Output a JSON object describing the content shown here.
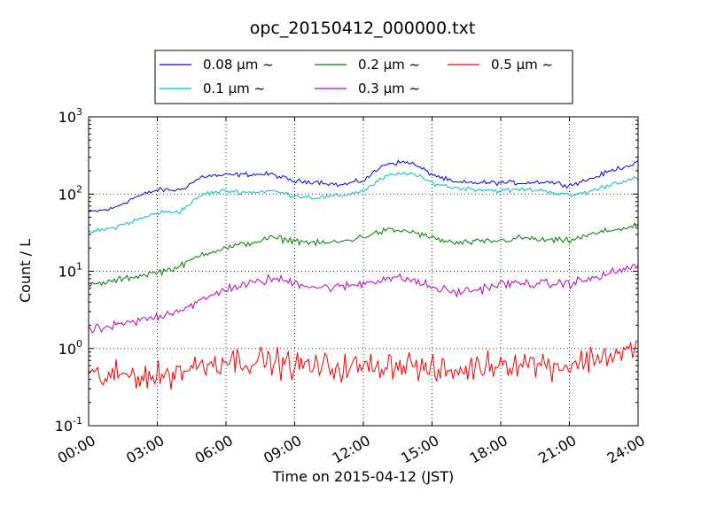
{
  "chart_data": {
    "type": "line",
    "title": "opc_20150412_000000.txt",
    "xlabel": "Time on 2015-04-12 (JST)",
    "ylabel": "Count / L",
    "yscale": "log",
    "ylim": [
      0.1,
      1000
    ],
    "xlim": [
      "00:00",
      "24:00"
    ],
    "grid": true,
    "legend_position": "top",
    "x_tick_labels": [
      "00:00",
      "03:00",
      "06:00",
      "09:00",
      "12:00",
      "15:00",
      "18:00",
      "21:00",
      "24:00"
    ],
    "y_tick_labels": [
      {
        "base": "10",
        "exp": "-1"
      },
      {
        "base": "10",
        "exp": "0"
      },
      {
        "base": "10",
        "exp": "1"
      },
      {
        "base": "10",
        "exp": "2"
      },
      {
        "base": "10",
        "exp": "3"
      }
    ],
    "x": [
      "00:00",
      "01:00",
      "02:00",
      "03:00",
      "04:00",
      "05:00",
      "06:00",
      "07:00",
      "08:00",
      "09:00",
      "10:00",
      "11:00",
      "12:00",
      "13:00",
      "14:00",
      "15:00",
      "16:00",
      "17:00",
      "18:00",
      "19:00",
      "20:00",
      "21:00",
      "22:00",
      "23:00",
      "24:00"
    ],
    "series": [
      {
        "name": "0.08 μm ~",
        "color": "#0000ff",
        "noise": 0.015,
        "values": [
          58,
          64,
          90,
          113,
          113,
          170,
          175,
          180,
          180,
          145,
          145,
          130,
          150,
          250,
          260,
          180,
          140,
          140,
          140,
          140,
          145,
          130,
          160,
          210,
          255
        ]
      },
      {
        "name": "0.1 μm ~",
        "color": "#00bfbf",
        "noise": 0.015,
        "values": [
          32,
          36,
          45,
          57,
          60,
          100,
          110,
          105,
          110,
          95,
          90,
          95,
          110,
          170,
          190,
          140,
          120,
          115,
          110,
          115,
          110,
          95,
          110,
          140,
          160
        ]
      },
      {
        "name": "0.2 μm ~",
        "color": "#008000",
        "noise": 0.02,
        "values": [
          6.5,
          7.4,
          8.5,
          9.7,
          11.5,
          17,
          20,
          23,
          27,
          25,
          23,
          24,
          28,
          34,
          33,
          27,
          23,
          24,
          25,
          27,
          25,
          25,
          30,
          35,
          38
        ]
      },
      {
        "name": "0.3 μm ~",
        "color": "#bf00bf",
        "noise": 0.03,
        "values": [
          1.7,
          1.9,
          2.2,
          2.6,
          3.2,
          4.2,
          6.0,
          6.8,
          8.0,
          7.2,
          6.2,
          6.2,
          7.0,
          8.2,
          7.9,
          6.2,
          5.3,
          5.8,
          6.8,
          7.0,
          6.8,
          7.0,
          8.0,
          9.8,
          12
        ]
      },
      {
        "name": "0.5 μm ~",
        "color": "#ff0000",
        "noise": 0.09,
        "values": [
          0.44,
          0.42,
          0.47,
          0.42,
          0.52,
          0.62,
          0.72,
          0.7,
          0.68,
          0.6,
          0.58,
          0.57,
          0.57,
          0.62,
          0.64,
          0.5,
          0.5,
          0.58,
          0.66,
          0.66,
          0.62,
          0.6,
          0.75,
          0.85,
          0.95
        ]
      }
    ]
  }
}
